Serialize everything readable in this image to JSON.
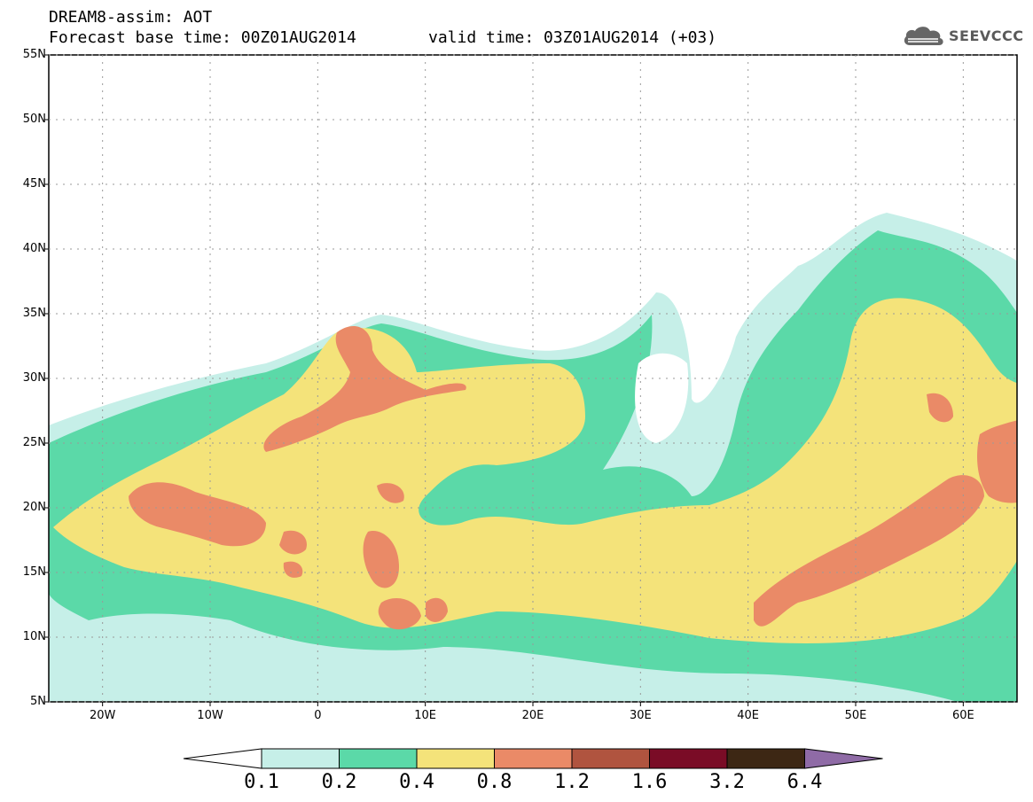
{
  "header": {
    "title_line1": "DREAM8-assim: AOT",
    "title_line2": "Forecast base time: 00Z01AUG2014",
    "valid_time": "valid time: 03Z01AUG2014 (+03)"
  },
  "logo": {
    "text": "SEEVCCC",
    "icon": "cloud-icon"
  },
  "axes": {
    "lat_labels": [
      "55N",
      "50N",
      "45N",
      "40N",
      "35N",
      "30N",
      "25N",
      "20N",
      "15N",
      "10N",
      "5N"
    ],
    "lon_labels": [
      "20W",
      "10W",
      "0",
      "10E",
      "20E",
      "30E",
      "40E",
      "50E",
      "60E"
    ],
    "lon_range": [
      -25,
      65
    ],
    "lat_range": [
      5,
      55
    ],
    "grid": true
  },
  "legend": {
    "boundaries": [
      "0.1",
      "0.2",
      "0.4",
      "0.8",
      "1.2",
      "1.6",
      "3.2",
      "6.4"
    ],
    "colors": [
      "#ffffff",
      "#c6efe8",
      "#5bd9a8",
      "#f4e37a",
      "#ea8a67",
      "#b0543f",
      "#7a0c26",
      "#3d2714",
      "#8f6ba6"
    ]
  },
  "colors": {
    "c01": "#c6efe8",
    "c02": "#5bd9a8",
    "c04": "#f4e37a",
    "c08": "#ea8a67"
  }
}
